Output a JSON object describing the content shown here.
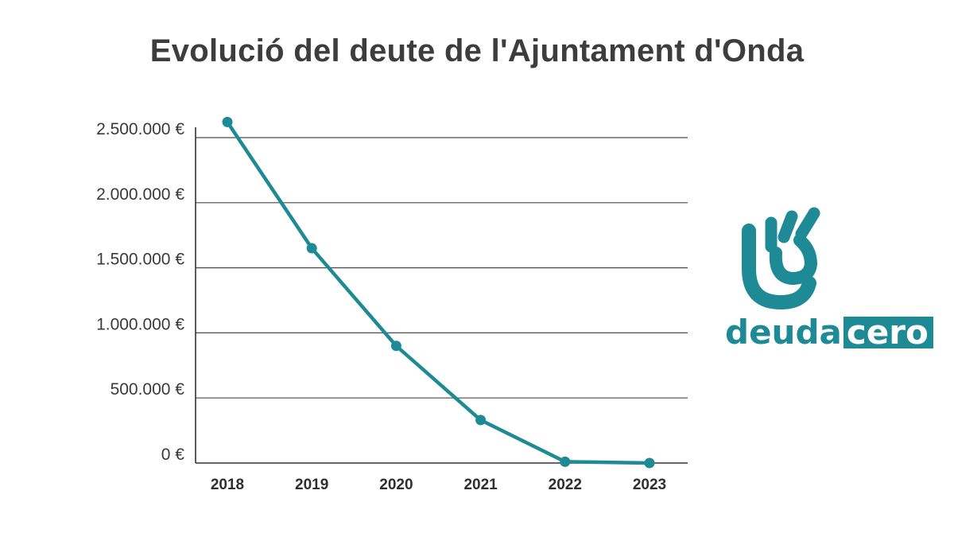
{
  "title": "Evolució del deute de l'Ajuntament d'Onda",
  "colors": {
    "line": "#1d8a96",
    "grid": "#4a4a4a",
    "title": "#3d3d3d"
  },
  "logo": {
    "icon": "ok-hand-icon",
    "word": "deuda",
    "boxed_word": "cero"
  },
  "chart_data": {
    "type": "line",
    "title": "Evolució del deute de l'Ajuntament d'Onda",
    "xlabel": "",
    "ylabel": "",
    "categories": [
      "2018",
      "2019",
      "2020",
      "2021",
      "2022",
      "2023"
    ],
    "series": [
      {
        "values": [
          2620000,
          1650000,
          900000,
          330000,
          10000,
          0
        ]
      }
    ],
    "ylim": [
      0,
      2500000
    ],
    "yticks": [
      0,
      500000,
      1000000,
      1500000,
      2000000,
      2500000
    ],
    "ytick_labels": [
      "0 €",
      "500.000 €",
      "1.000.000 €",
      "1.500.000 €",
      "2.000.000 €",
      "2.500.000 €"
    ],
    "grid": true,
    "legend": "none"
  }
}
